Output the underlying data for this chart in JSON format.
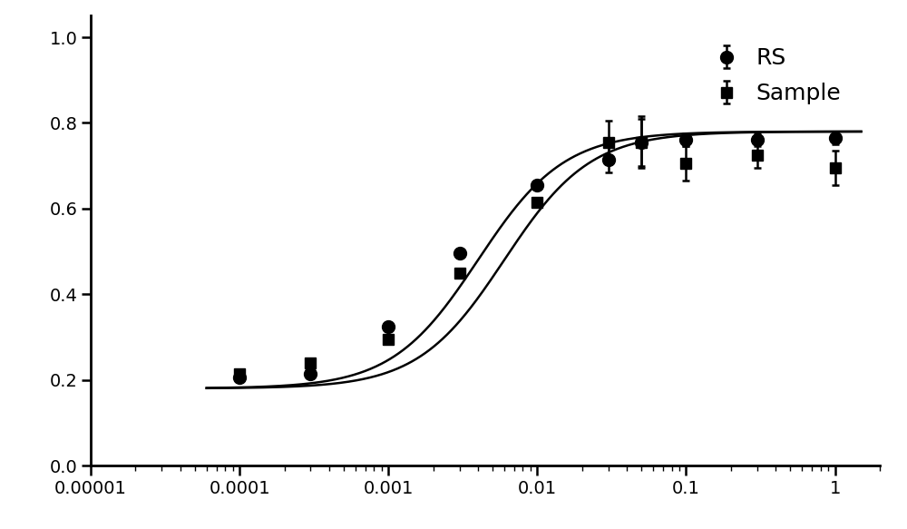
{
  "rs_x": [
    0.0001,
    0.0003,
    0.001,
    0.003,
    0.01,
    0.03,
    0.05,
    0.1,
    0.3,
    1.0
  ],
  "rs_y": [
    0.205,
    0.215,
    0.325,
    0.495,
    0.655,
    0.715,
    0.755,
    0.76,
    0.76,
    0.765
  ],
  "rs_yerr": [
    0.0,
    0.0,
    0.0,
    0.0,
    0.0,
    0.03,
    0.06,
    0.015,
    0.015,
    0.015
  ],
  "sample_x": [
    0.0001,
    0.0003,
    0.001,
    0.003,
    0.01,
    0.03,
    0.05,
    0.1,
    0.3,
    1.0
  ],
  "sample_y": [
    0.215,
    0.24,
    0.295,
    0.45,
    0.615,
    0.755,
    0.755,
    0.705,
    0.725,
    0.695
  ],
  "sample_yerr": [
    0.0,
    0.0,
    0.0,
    0.0,
    0.0,
    0.05,
    0.055,
    0.04,
    0.03,
    0.04
  ],
  "xlim_low": 1e-05,
  "xlim_high": 2.0,
  "ylim": [
    0.0,
    1.05
  ],
  "yticks": [
    0.0,
    0.2,
    0.4,
    0.6,
    0.8,
    1.0
  ],
  "bg_color": "#ffffff",
  "line_color": "#000000",
  "marker_color": "#000000",
  "legend_rs": "RS",
  "legend_sample": "Sample",
  "legend_fontsize": 18,
  "marker_size": 10,
  "line_width": 1.8,
  "capsize": 3,
  "tick_fontsize": 14
}
